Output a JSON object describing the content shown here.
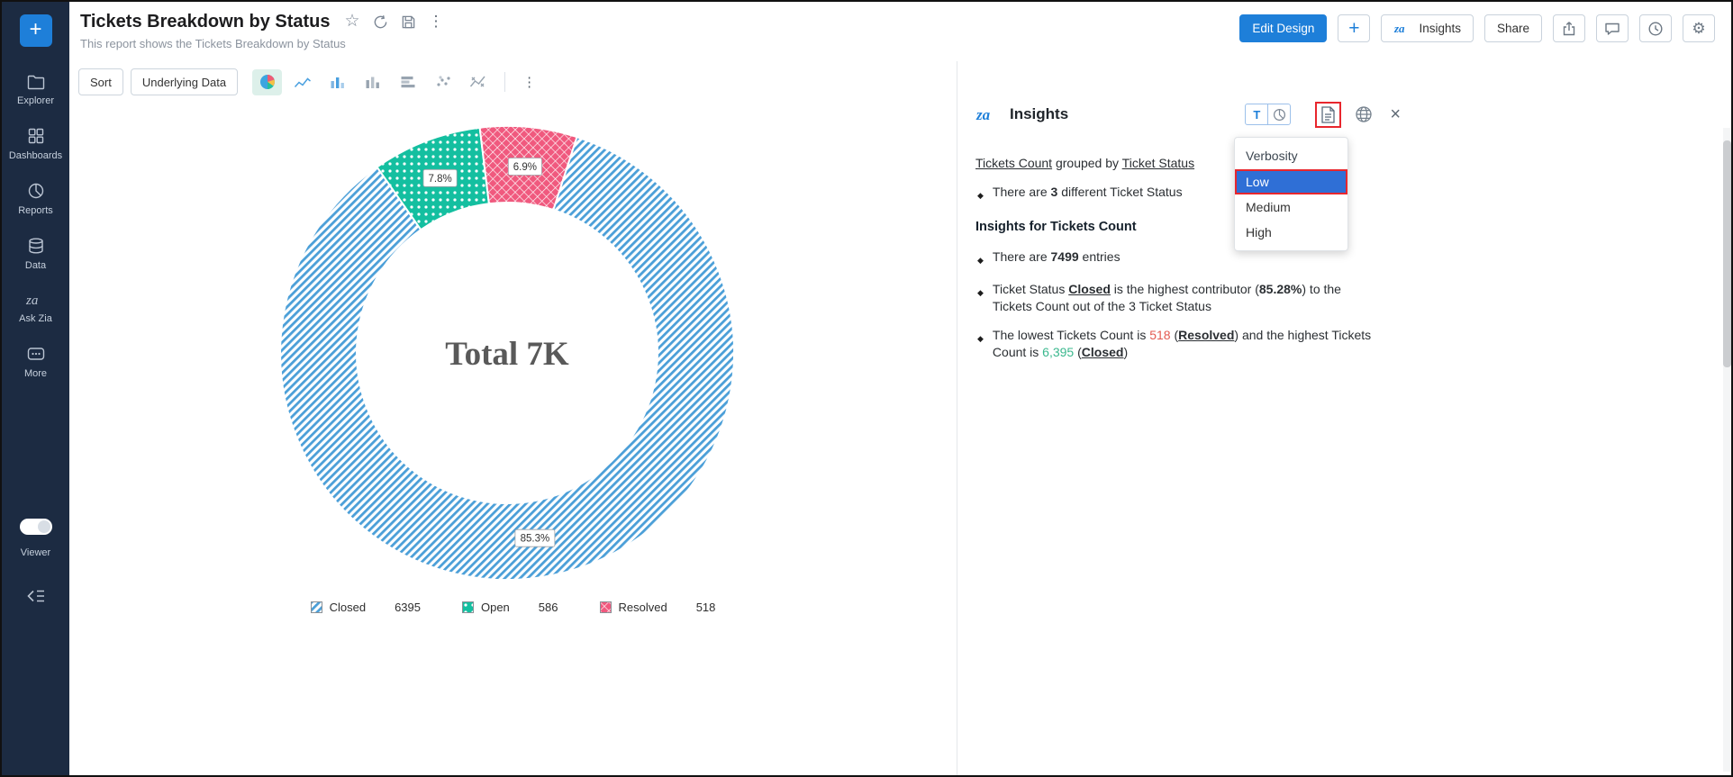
{
  "colors": {
    "accent": "#1e7fd9",
    "sidebar_bg": "#1c2b42",
    "selected_option_bg": "#2f6fd6",
    "annotation_red": "#e8262d",
    "negative_value": "#e35a51",
    "positive_value": "#3bb88e"
  },
  "icons": {
    "plus": "+",
    "kebab": "⋮",
    "star": "☆",
    "close": "×",
    "gear": "⚙",
    "zia": "za"
  },
  "sidebar": {
    "items": [
      {
        "label": "Explorer"
      },
      {
        "label": "Dashboards"
      },
      {
        "label": "Reports"
      },
      {
        "label": "Data"
      },
      {
        "label": "Ask Zia"
      },
      {
        "label": "More"
      }
    ],
    "viewer_label": "Viewer"
  },
  "header": {
    "title": "Tickets Breakdown by Status",
    "subtitle": "This report shows the Tickets Breakdown by Status",
    "edit_design_label": "Edit Design",
    "insights_label": "Insights",
    "share_label": "Share"
  },
  "toolbar": {
    "sort_label": "Sort",
    "underlying_data_label": "Underlying Data"
  },
  "chart_data": {
    "type": "pie",
    "title": "Tickets Breakdown by Status",
    "center_label": "Total 7K",
    "categories": [
      "Closed",
      "Open",
      "Resolved"
    ],
    "values": [
      6395,
      586,
      518
    ],
    "percentages": [
      85.3,
      7.8,
      6.9
    ],
    "colors": [
      "#4b9fd8",
      "#14bfa0",
      "#f0597e"
    ],
    "patterns": [
      "diagonal-stripes",
      "dots",
      "crosshatch"
    ],
    "legend_position": "bottom"
  },
  "insights": {
    "title": "Insights",
    "text_toggle_label": "T",
    "verbosity": {
      "label": "Verbosity",
      "options": [
        "Low",
        "Medium",
        "High"
      ],
      "selected": "Low"
    },
    "lines": [
      {
        "type": "intro",
        "segments": [
          {
            "t": "Tickets Count",
            "link": true
          },
          {
            "t": " grouped by "
          },
          {
            "t": "Ticket Status",
            "link": true
          }
        ]
      },
      {
        "type": "bullet",
        "segments": [
          {
            "t": "There are "
          },
          {
            "t": "3",
            "b": true
          },
          {
            "t": " different Ticket Status"
          }
        ]
      },
      {
        "type": "heading",
        "segments": [
          {
            "t": "Insights for Tickets Count"
          }
        ]
      },
      {
        "type": "bullet",
        "segments": [
          {
            "t": "There are "
          },
          {
            "t": "7499",
            "b": true
          },
          {
            "t": " entries"
          }
        ]
      },
      {
        "type": "bullet",
        "segments": [
          {
            "t": "Ticket Status "
          },
          {
            "t": "Closed",
            "b": true,
            "u": true
          },
          {
            "t": " is the highest contributor ("
          },
          {
            "t": "85.28%",
            "b": true
          },
          {
            "t": ") to the Tickets Count out of the 3 Ticket Status"
          }
        ]
      },
      {
        "type": "bullet",
        "segments": [
          {
            "t": "The lowest Tickets Count is "
          },
          {
            "t": "518",
            "c": "#e35a51"
          },
          {
            "t": " ("
          },
          {
            "t": "Resolved",
            "b": true,
            "u": true
          },
          {
            "t": ") and the highest Tickets Count is "
          },
          {
            "t": "6,395",
            "c": "#3bb88e"
          },
          {
            "t": " ("
          },
          {
            "t": "Closed",
            "b": true,
            "u": true
          },
          {
            "t": ")"
          }
        ]
      }
    ]
  }
}
